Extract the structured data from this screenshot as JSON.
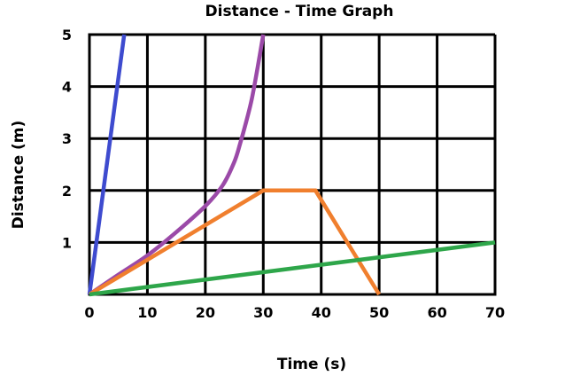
{
  "chart_data": {
    "type": "line",
    "title": "Distance - Time Graph",
    "xlabel": "Time (s)",
    "ylabel": "Distance (m)",
    "xlim": [
      0,
      70
    ],
    "ylim": [
      0,
      5
    ],
    "xticks": [
      0,
      10,
      20,
      30,
      40,
      50,
      60,
      70
    ],
    "yticks": [
      1,
      2,
      3,
      4,
      5
    ],
    "x_tick_labels": [
      "0",
      "10",
      "20",
      "30",
      "40",
      "50",
      "60",
      "70"
    ],
    "y_tick_labels": [
      "1",
      "2",
      "3",
      "4",
      "5"
    ],
    "grid": true,
    "series": [
      {
        "color": "#3e4bcf",
        "x": [
          0,
          6
        ],
        "y": [
          0,
          5
        ]
      },
      {
        "color": "#9b4aa8",
        "x": [
          0,
          5,
          10,
          15,
          20,
          23,
          25,
          26,
          27,
          28,
          29,
          30
        ],
        "y": [
          0,
          0.38,
          0.75,
          1.2,
          1.7,
          2.1,
          2.55,
          2.9,
          3.3,
          3.75,
          4.35,
          5
        ]
      },
      {
        "color": "#f07f2e",
        "x": [
          0,
          30,
          39,
          50
        ],
        "y": [
          0,
          2,
          2,
          0
        ]
      },
      {
        "color": "#2ea64a",
        "x": [
          0,
          70
        ],
        "y": [
          0,
          1
        ]
      }
    ]
  }
}
